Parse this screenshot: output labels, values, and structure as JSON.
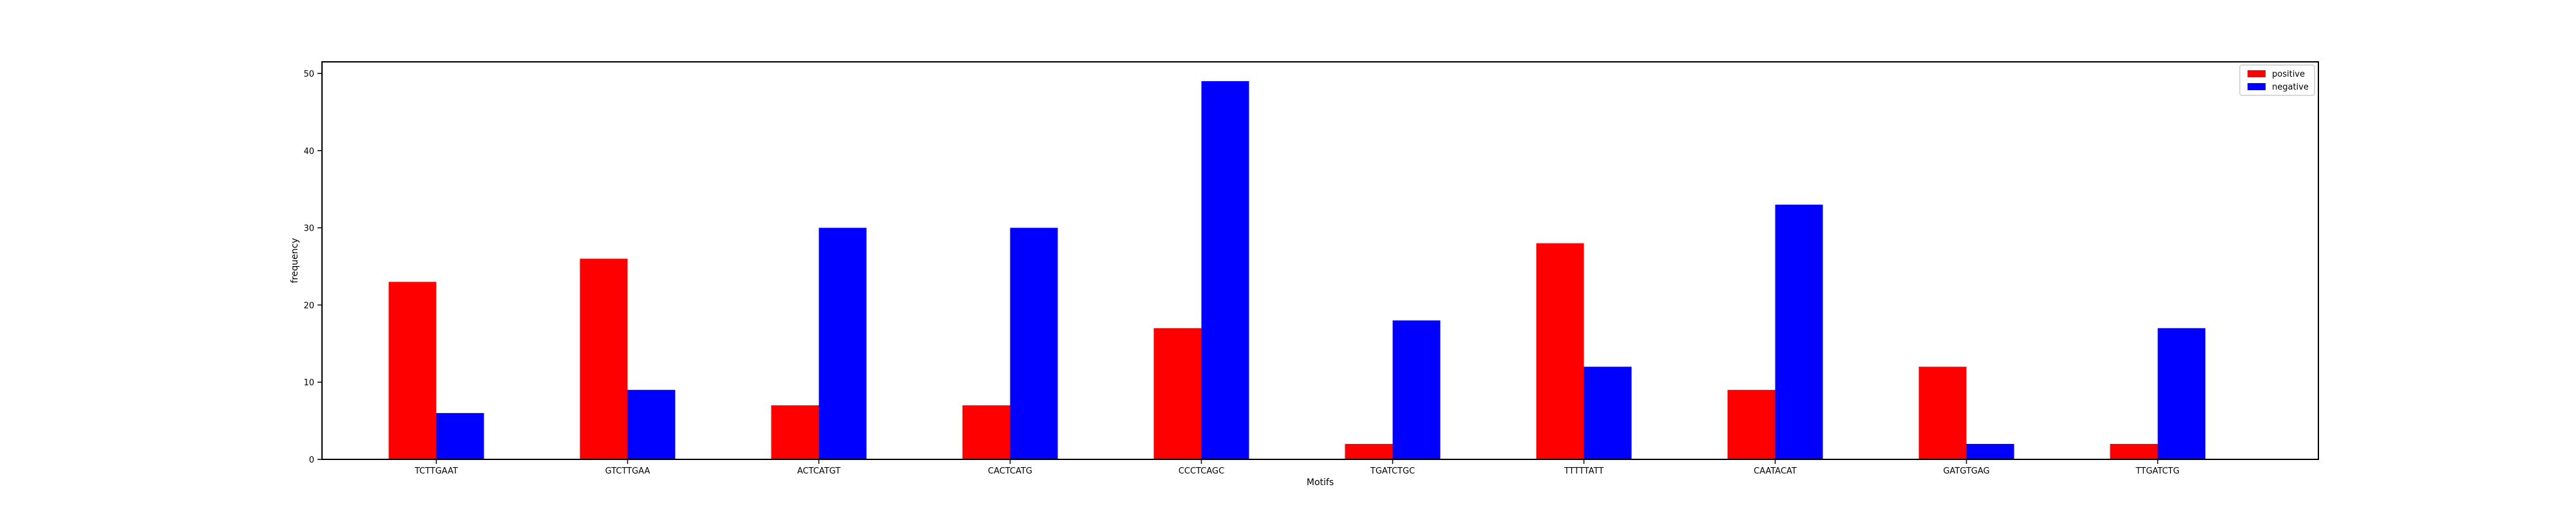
{
  "chart_data": {
    "type": "bar",
    "title": "",
    "xlabel": "Motifs",
    "ylabel": "frequency",
    "ylim": [
      0,
      51.5
    ],
    "yticks": [
      0,
      10,
      20,
      30,
      40,
      50
    ],
    "grid": false,
    "legend_position": "top-right",
    "categories": [
      "TCTTGAAT",
      "GTCTTGAA",
      "ACTCATGT",
      "CACTCATG",
      "CCCTCAGC",
      "TGATCTGC",
      "TTTTTATT",
      "CAATACAT",
      "GATGTGAG",
      "TTGATCTG"
    ],
    "series": [
      {
        "name": "positive",
        "color": "#ff0000",
        "values": [
          23,
          26,
          7,
          7,
          17,
          2,
          28,
          9,
          12,
          2
        ]
      },
      {
        "name": "negative",
        "color": "#0000ff",
        "values": [
          6,
          9,
          30,
          30,
          49,
          18,
          12,
          33,
          2,
          17
        ]
      }
    ]
  }
}
